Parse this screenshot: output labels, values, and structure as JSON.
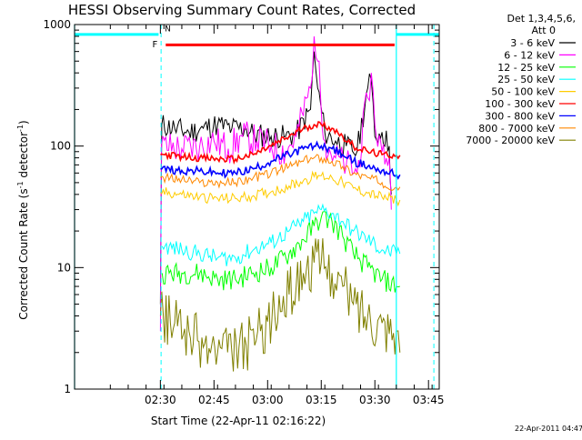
{
  "chart_data": {
    "type": "line",
    "title": "HESSI Observing Summary Count Rates, Corrected",
    "xlabel": "Start Time (22-Apr-11 02:16:22)",
    "ylabel_main": "Corrected Count Rate (s",
    "ylabel_sup1": "-1",
    "ylabel_mid": " detector",
    "ylabel_sup2": "-1",
    "ylabel_end": ")",
    "y_scale": "log",
    "ylim": [
      1,
      1000
    ],
    "xlim_minutes": [
      -10,
      92
    ],
    "x_ticks": [
      {
        "label": "02:30",
        "minutes": 14
      },
      {
        "label": "02:45",
        "minutes": 29
      },
      {
        "label": "03:00",
        "minutes": 44
      },
      {
        "label": "03:15",
        "minutes": 59
      },
      {
        "label": "03:30",
        "minutes": 74
      },
      {
        "label": "03:45",
        "minutes": 89
      }
    ],
    "y_ticks": [
      {
        "label": "1",
        "value": 1
      },
      {
        "label": "10",
        "value": 10
      },
      {
        "label": "100",
        "value": 100
      },
      {
        "label": "1000",
        "value": 1000
      }
    ],
    "legend_header": [
      "Det 1,3,4,5,6,",
      "Att 0"
    ],
    "legend_placement": "top-right outside plot",
    "series": [
      {
        "name": "3 - 6 keV",
        "color": "#000000",
        "points": [
          [
            13,
            null
          ],
          [
            14,
            5
          ],
          [
            14.4,
            150
          ],
          [
            18,
            140
          ],
          [
            22,
            130
          ],
          [
            26,
            140
          ],
          [
            30,
            150
          ],
          [
            34,
            140
          ],
          [
            38,
            140
          ],
          [
            40,
            125
          ],
          [
            45,
            120
          ],
          [
            49,
            120
          ],
          [
            52,
            125
          ],
          [
            56,
            200
          ],
          [
            57,
            600
          ],
          [
            58,
            300
          ],
          [
            60,
            130
          ],
          [
            63,
            110
          ],
          [
            66,
            100
          ],
          [
            69,
            90
          ],
          [
            72,
            300
          ],
          [
            73,
            350
          ],
          [
            74,
            120
          ],
          [
            76,
            130
          ],
          [
            78,
            100
          ],
          [
            78.6,
            40
          ],
          [
            79,
            null
          ]
        ]
      },
      {
        "name": "6 - 12 keV",
        "color": "#ff00ff",
        "points": [
          [
            13,
            null
          ],
          [
            14,
            3
          ],
          [
            14.3,
            100
          ],
          [
            20,
            95
          ],
          [
            25,
            100
          ],
          [
            29,
            110
          ],
          [
            33,
            95
          ],
          [
            37,
            120
          ],
          [
            41,
            110
          ],
          [
            45,
            100
          ],
          [
            49,
            90
          ],
          [
            52,
            120
          ],
          [
            56,
            300
          ],
          [
            57,
            800
          ],
          [
            58,
            500
          ],
          [
            60,
            110
          ],
          [
            63,
            80
          ],
          [
            66,
            70
          ],
          [
            69,
            60
          ],
          [
            72,
            250
          ],
          [
            73,
            400
          ],
          [
            74,
            150
          ],
          [
            76,
            90
          ],
          [
            78,
            80
          ],
          [
            78.6,
            30
          ],
          [
            79,
            null
          ]
        ]
      },
      {
        "name": "12 - 25 keV",
        "color": "#00ff00",
        "points": [
          [
            14,
            null
          ],
          [
            14.5,
            9
          ],
          [
            20,
            9
          ],
          [
            25,
            9
          ],
          [
            30,
            8
          ],
          [
            35,
            8
          ],
          [
            40,
            9
          ],
          [
            45,
            10
          ],
          [
            50,
            13
          ],
          [
            54,
            17
          ],
          [
            57,
            22
          ],
          [
            59,
            26
          ],
          [
            62,
            24
          ],
          [
            65,
            18
          ],
          [
            68,
            13
          ],
          [
            72,
            10
          ],
          [
            76,
            8
          ],
          [
            80,
            7
          ],
          [
            81,
            7
          ],
          [
            82,
            null
          ]
        ]
      },
      {
        "name": "25 - 50 keV",
        "color": "#00ffff",
        "points": [
          [
            14,
            null
          ],
          [
            14.5,
            15
          ],
          [
            20,
            14
          ],
          [
            25,
            13
          ],
          [
            30,
            12
          ],
          [
            35,
            12
          ],
          [
            40,
            14
          ],
          [
            45,
            16
          ],
          [
            50,
            20
          ],
          [
            54,
            24
          ],
          [
            57,
            28
          ],
          [
            59,
            30
          ],
          [
            62,
            28
          ],
          [
            65,
            24
          ],
          [
            68,
            20
          ],
          [
            72,
            17
          ],
          [
            76,
            14
          ],
          [
            80,
            13
          ],
          [
            81,
            13
          ],
          [
            82,
            null
          ]
        ]
      },
      {
        "name": "50 - 100 keV",
        "color": "#ffcc00",
        "points": [
          [
            13,
            null
          ],
          [
            14,
            42
          ],
          [
            20,
            40
          ],
          [
            25,
            38
          ],
          [
            30,
            37
          ],
          [
            35,
            37
          ],
          [
            40,
            39
          ],
          [
            45,
            42
          ],
          [
            50,
            47
          ],
          [
            54,
            52
          ],
          [
            57,
            56
          ],
          [
            59,
            57
          ],
          [
            62,
            55
          ],
          [
            65,
            50
          ],
          [
            68,
            45
          ],
          [
            72,
            41
          ],
          [
            76,
            38
          ],
          [
            80,
            36
          ],
          [
            81,
            36
          ],
          [
            82,
            null
          ]
        ]
      },
      {
        "name": "100 - 300 keV",
        "color": "#ff0000",
        "points": [
          [
            13,
            null
          ],
          [
            14,
            85
          ],
          [
            20,
            82
          ],
          [
            25,
            80
          ],
          [
            30,
            78
          ],
          [
            35,
            78
          ],
          [
            40,
            85
          ],
          [
            45,
            100
          ],
          [
            50,
            120
          ],
          [
            54,
            140
          ],
          [
            57,
            150
          ],
          [
            59,
            150
          ],
          [
            62,
            140
          ],
          [
            65,
            120
          ],
          [
            68,
            100
          ],
          [
            72,
            90
          ],
          [
            76,
            85
          ],
          [
            80,
            84
          ],
          [
            81,
            84
          ],
          [
            82,
            null
          ]
        ]
      },
      {
        "name": "300 - 800 keV",
        "color": "#0000ff",
        "points": [
          [
            13,
            null
          ],
          [
            14,
            65
          ],
          [
            20,
            63
          ],
          [
            25,
            62
          ],
          [
            30,
            60
          ],
          [
            35,
            60
          ],
          [
            40,
            65
          ],
          [
            45,
            75
          ],
          [
            50,
            85
          ],
          [
            54,
            95
          ],
          [
            57,
            100
          ],
          [
            59,
            100
          ],
          [
            62,
            95
          ],
          [
            65,
            85
          ],
          [
            68,
            75
          ],
          [
            72,
            68
          ],
          [
            76,
            63
          ],
          [
            80,
            58
          ],
          [
            81,
            58
          ],
          [
            82,
            null
          ]
        ]
      },
      {
        "name": "800 - 7000 keV",
        "color": "#ff8800",
        "points": [
          [
            13,
            null
          ],
          [
            14,
            55
          ],
          [
            20,
            53
          ],
          [
            25,
            50
          ],
          [
            30,
            50
          ],
          [
            35,
            50
          ],
          [
            40,
            55
          ],
          [
            45,
            60
          ],
          [
            50,
            68
          ],
          [
            54,
            75
          ],
          [
            57,
            80
          ],
          [
            59,
            80
          ],
          [
            62,
            75
          ],
          [
            65,
            68
          ],
          [
            68,
            60
          ],
          [
            72,
            55
          ],
          [
            76,
            50
          ],
          [
            80,
            46
          ],
          [
            81,
            46
          ],
          [
            82,
            null
          ]
        ]
      },
      {
        "name": "7000 - 20000 keV",
        "color": "#808000",
        "points": [
          [
            13,
            null
          ],
          [
            14,
            4
          ],
          [
            18,
            3.5
          ],
          [
            22,
            3
          ],
          [
            26,
            2.2
          ],
          [
            30,
            2
          ],
          [
            34,
            2
          ],
          [
            38,
            2.3
          ],
          [
            42,
            3
          ],
          [
            46,
            4
          ],
          [
            50,
            6
          ],
          [
            54,
            9
          ],
          [
            57,
            11
          ],
          [
            59,
            11
          ],
          [
            62,
            9
          ],
          [
            65,
            7
          ],
          [
            68,
            5
          ],
          [
            72,
            4
          ],
          [
            76,
            3.5
          ],
          [
            80,
            3
          ],
          [
            81,
            2
          ],
          [
            82,
            null
          ]
        ]
      }
    ],
    "annotations": [
      {
        "text": "F",
        "color": "#cc0000",
        "segment_label": "flare interval"
      },
      {
        "text": "N",
        "color": "#00cccc",
        "segment_label": "night interval"
      }
    ],
    "timestamp": "22-Apr-2011 04:47",
    "colors": {
      "flare": "#ff0000",
      "night": "#00ffff",
      "axes": "#000000",
      "background": "#ffffff"
    }
  }
}
